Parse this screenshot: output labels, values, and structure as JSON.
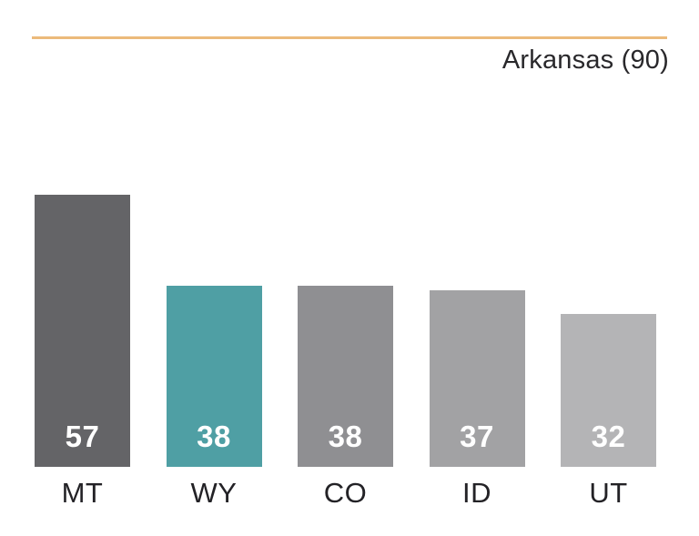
{
  "header": {
    "title": "Arkansas (90)",
    "accent_line_color": "#ecba7b"
  },
  "chart_data": {
    "type": "bar",
    "title": "Arkansas (90)",
    "categories": [
      "MT",
      "WY",
      "CO",
      "ID",
      "UT"
    ],
    "values": [
      57,
      38,
      38,
      37,
      32
    ],
    "bar_colors": [
      "#646467",
      "#4f9fa4",
      "#8f8f92",
      "#a2a2a4",
      "#b4b4b6"
    ],
    "value_label_color": "#ffffff",
    "category_label_color": "#232226",
    "xlabel": "",
    "ylabel": "",
    "ylim": [
      0,
      57
    ],
    "grid": false,
    "legend": false,
    "value_labels": "inside-bottom"
  }
}
